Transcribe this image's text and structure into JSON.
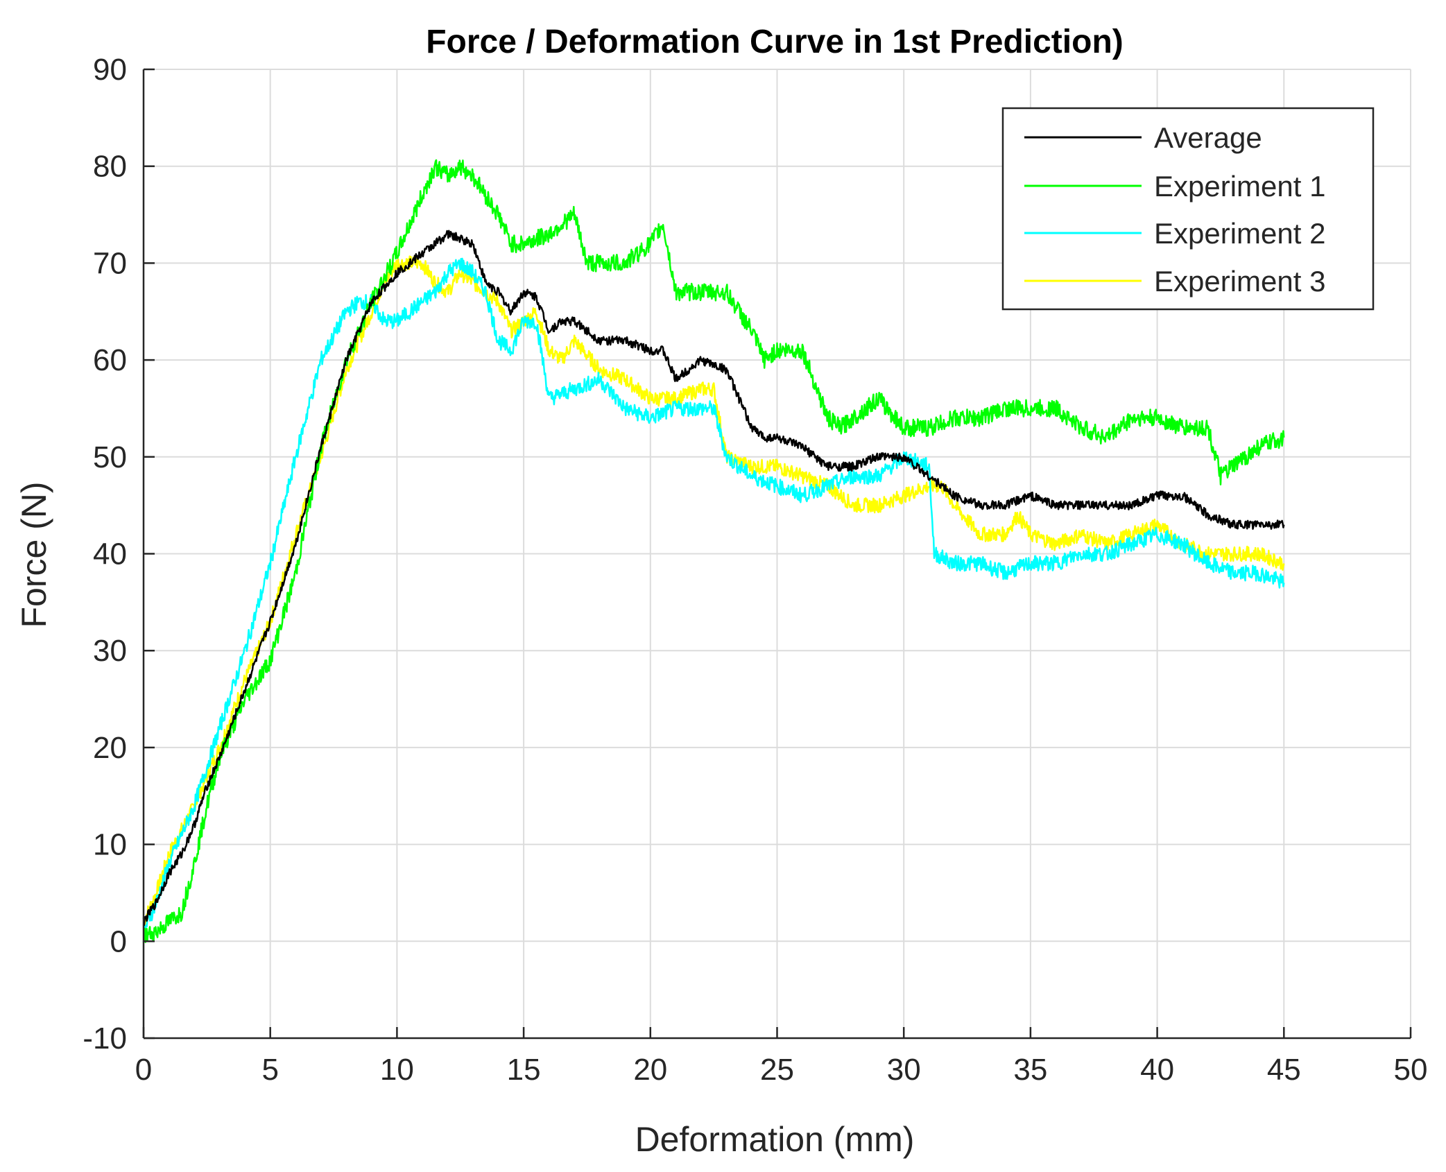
{
  "chart_data": {
    "type": "line",
    "title": "Force / Deformation Curve in 1st Prediction)",
    "xlabel": "Deformation (mm)",
    "ylabel": "Force (N)",
    "xlim": [
      0,
      50
    ],
    "ylim": [
      -10,
      90
    ],
    "xticks": [
      0,
      5,
      10,
      15,
      20,
      25,
      30,
      35,
      40,
      45,
      50
    ],
    "yticks": [
      -10,
      0,
      10,
      20,
      30,
      40,
      50,
      60,
      70,
      80,
      90
    ],
    "xtick_labels": [
      "0",
      "5",
      "10",
      "15",
      "20",
      "25",
      "30",
      "35",
      "40",
      "45",
      "50"
    ],
    "ytick_labels": [
      "-10",
      "0",
      "10",
      "20",
      "30",
      "40",
      "50",
      "60",
      "70",
      "80",
      "90"
    ],
    "grid": true,
    "legend_position": "top-right",
    "series": [
      {
        "name": "Average",
        "color": "#000000",
        "x": [
          0,
          0.5,
          1,
          1.5,
          2,
          2.5,
          3,
          4,
          5,
          6,
          7,
          8,
          9,
          10,
          11,
          12,
          12.5,
          13,
          13.5,
          14,
          14.5,
          15,
          15.5,
          16,
          16.5,
          17,
          17.5,
          18,
          19,
          20,
          20.5,
          21,
          21.5,
          22,
          23,
          23.5,
          24,
          24.5,
          25,
          26,
          27,
          27.5,
          28,
          29,
          30,
          31,
          31.5,
          32,
          33,
          34,
          35,
          36,
          37,
          38,
          39,
          40,
          40.5,
          41,
          41.5,
          42,
          43,
          44,
          45
        ],
        "y": [
          2,
          4,
          7,
          9,
          12,
          16,
          19,
          26,
          33,
          41,
          51,
          60,
          66,
          69,
          71,
          73,
          72.5,
          72,
          68,
          67,
          65,
          67,
          66.5,
          63,
          64,
          64,
          63,
          62,
          62,
          61,
          61,
          58,
          59,
          60,
          59,
          56,
          53,
          52,
          52,
          51,
          49,
          49,
          49,
          50,
          50,
          48,
          47,
          46,
          45,
          45,
          46,
          45,
          45,
          45,
          45,
          46,
          46,
          46,
          45,
          44,
          43,
          43,
          43
        ]
      },
      {
        "name": "Experiment 1",
        "color": "#00ff00",
        "x": [
          0,
          0.5,
          1,
          1.5,
          2,
          2.5,
          3,
          4,
          5,
          6,
          7,
          8,
          9,
          10,
          11,
          11.5,
          12,
          12.5,
          13,
          13.5,
          14,
          14.5,
          15,
          16,
          17,
          17.5,
          18,
          19,
          20,
          20.5,
          21,
          22,
          23,
          24,
          24.5,
          25,
          26,
          27,
          27.5,
          28,
          29,
          30,
          31,
          32,
          33,
          34,
          35,
          36,
          37,
          38,
          39,
          40,
          41,
          42,
          42.5,
          43,
          44,
          45
        ],
        "y": [
          0.5,
          1,
          2,
          3,
          8,
          14,
          19,
          25,
          29,
          38,
          51,
          60,
          66,
          71,
          77,
          80,
          79,
          80,
          79,
          77,
          75,
          72,
          72,
          73,
          75,
          70,
          70,
          70,
          72,
          74,
          67,
          67,
          67,
          63,
          60,
          61,
          61,
          54,
          53,
          54,
          56,
          53,
          53,
          54,
          54,
          55,
          55,
          55,
          53,
          52,
          54,
          54,
          53,
          53,
          48,
          49,
          51,
          52
        ]
      },
      {
        "name": "Experiment 2",
        "color": "#00ffff",
        "x": [
          0,
          0.5,
          1,
          2,
          3,
          4,
          5,
          6,
          7,
          8,
          8.5,
          9,
          9.5,
          10,
          10.5,
          11,
          11.5,
          12,
          12.5,
          13,
          13.5,
          14,
          14.5,
          15,
          15.5,
          16,
          17,
          18,
          19,
          20,
          21,
          22,
          22.5,
          23,
          24,
          25,
          26,
          27,
          28,
          29,
          30,
          31,
          31.2,
          32,
          33,
          34,
          35,
          36,
          37,
          38,
          39,
          40,
          41,
          42,
          43,
          44,
          45
        ],
        "y": [
          1,
          4,
          8,
          14,
          22,
          30,
          39,
          50,
          60,
          65,
          66,
          66,
          64,
          64,
          65,
          66,
          67,
          69,
          70,
          69,
          67,
          62,
          61,
          64,
          64,
          56,
          57,
          58,
          55,
          54,
          55,
          55,
          55,
          50,
          48,
          47,
          46,
          47,
          48,
          48,
          50,
          49,
          40,
          39,
          39,
          38,
          39,
          39,
          40,
          40,
          41,
          42,
          41,
          39,
          38,
          38,
          37
        ]
      },
      {
        "name": "Experiment 3",
        "color": "#ffff00",
        "x": [
          0,
          0.5,
          1,
          2,
          3,
          4,
          5,
          6,
          7,
          8,
          9,
          9.5,
          10,
          10.5,
          11,
          11.5,
          12,
          12.5,
          13,
          13.5,
          14,
          14.5,
          15,
          15.5,
          16,
          16.5,
          17,
          18,
          19,
          20,
          21,
          22,
          22.5,
          23,
          24,
          25,
          26,
          27,
          28,
          29,
          30,
          31,
          31.5,
          32,
          33,
          34,
          34.5,
          35,
          36,
          37,
          38,
          39,
          40,
          41,
          42,
          43,
          44,
          45
        ],
        "y": [
          2,
          5,
          9,
          14,
          20,
          27,
          33,
          42,
          50,
          59,
          65,
          68,
          70,
          70,
          70,
          68,
          67,
          69,
          68,
          67,
          66,
          63,
          64,
          65,
          61,
          60,
          62,
          59,
          58,
          56,
          56,
          57,
          57,
          50,
          49,
          49,
          48,
          47,
          45,
          45,
          46,
          47,
          47,
          45,
          42,
          42,
          44,
          42,
          41,
          42,
          41,
          42,
          43,
          41,
          40,
          40,
          40,
          39
        ]
      }
    ]
  }
}
